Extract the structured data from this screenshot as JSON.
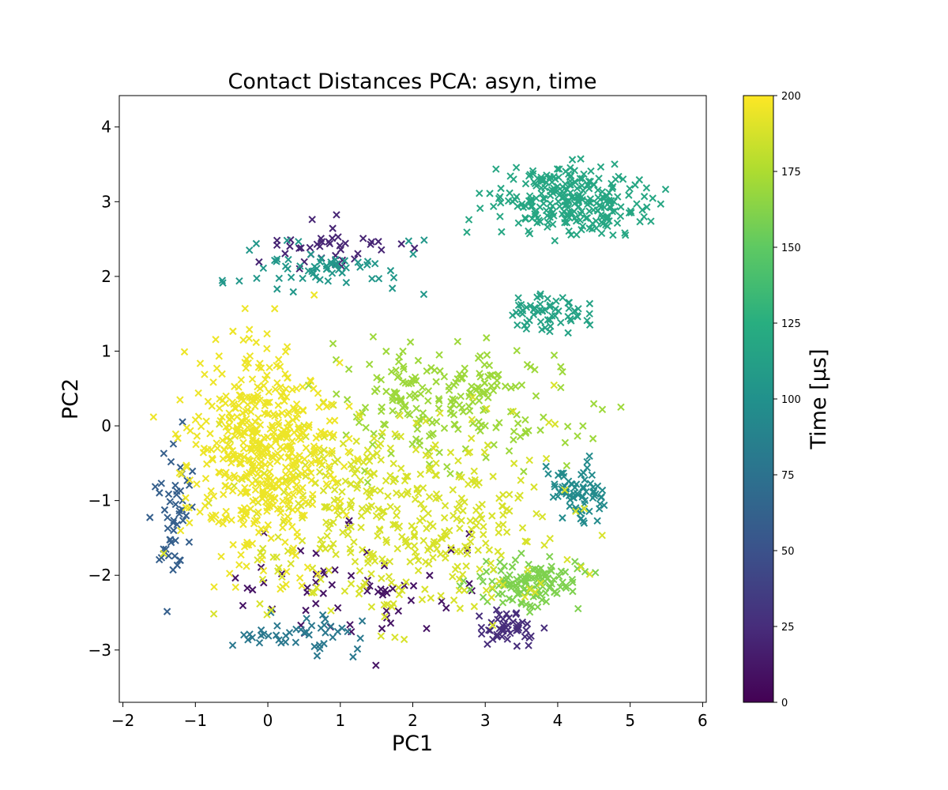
{
  "chart_data": {
    "type": "scatter",
    "title": "Contact Distances PCA: asyn, time",
    "xlabel": "PC1",
    "ylabel": "PC2",
    "xlim": [
      -2.05,
      6.05
    ],
    "ylim": [
      -3.7,
      4.42
    ],
    "xticks": [
      -2,
      -1,
      0,
      1,
      2,
      3,
      4,
      5,
      6
    ],
    "xtick_labels": [
      "−2",
      "−1",
      "0",
      "1",
      "2",
      "3",
      "4",
      "5",
      "6"
    ],
    "yticks": [
      -3,
      -2,
      -1,
      0,
      1,
      2,
      3,
      4
    ],
    "ytick_labels": [
      "−3",
      "−2",
      "−1",
      "0",
      "1",
      "2",
      "3",
      "4"
    ],
    "marker": "x",
    "grid": false,
    "colormap": "viridis",
    "colorbar": {
      "label": "Time [μs]",
      "range": [
        0,
        200
      ],
      "ticks": [
        0,
        25,
        50,
        75,
        100,
        125,
        150,
        175,
        200
      ],
      "tick_labels": [
        "0",
        "25",
        "50",
        "75",
        "100",
        "125",
        "150",
        "175",
        "200"
      ]
    },
    "clusters": [
      {
        "time": 10,
        "center": [
          1.2,
          -2.2
        ],
        "spread": [
          2.2,
          0.9
        ],
        "count": 60
      },
      {
        "time": 25,
        "center": [
          3.3,
          -2.7
        ],
        "spread": [
          0.5,
          0.25
        ],
        "count": 45
      },
      {
        "time": 20,
        "center": [
          0.9,
          2.4
        ],
        "spread": [
          1.1,
          0.35
        ],
        "count": 40
      },
      {
        "time": 60,
        "center": [
          -1.3,
          -1.2
        ],
        "spread": [
          0.3,
          1.1
        ],
        "count": 50
      },
      {
        "time": 80,
        "center": [
          0.5,
          -2.8
        ],
        "spread": [
          1.0,
          0.3
        ],
        "count": 45
      },
      {
        "time": 95,
        "center": [
          4.3,
          -0.9
        ],
        "spread": [
          0.5,
          0.45
        ],
        "count": 70
      },
      {
        "time": 105,
        "center": [
          0.6,
          2.1
        ],
        "spread": [
          1.4,
          0.4
        ],
        "count": 60
      },
      {
        "time": 118,
        "center": [
          4.1,
          3.0
        ],
        "spread": [
          1.1,
          0.55
        ],
        "count": 260
      },
      {
        "time": 115,
        "center": [
          3.9,
          1.5
        ],
        "spread": [
          0.7,
          0.3
        ],
        "count": 60
      },
      {
        "time": 160,
        "center": [
          3.6,
          -2.1
        ],
        "spread": [
          0.9,
          0.35
        ],
        "count": 120
      },
      {
        "time": 170,
        "center": [
          2.5,
          0.3
        ],
        "spread": [
          1.9,
          0.9
        ],
        "count": 220
      },
      {
        "time": 188,
        "center": [
          1.8,
          -1.2
        ],
        "spread": [
          2.4,
          1.5
        ],
        "count": 420
      },
      {
        "time": 195,
        "center": [
          -0.1,
          -0.3
        ],
        "spread": [
          1.1,
          1.6
        ],
        "count": 520
      }
    ]
  }
}
